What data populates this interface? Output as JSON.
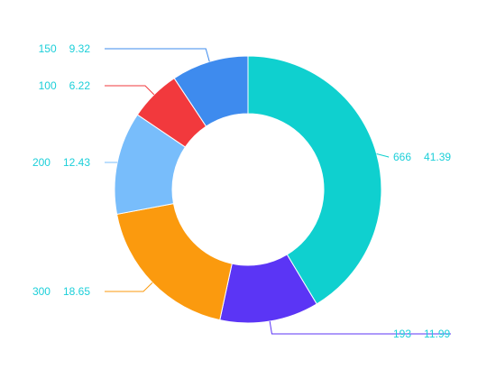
{
  "chart_data": {
    "type": "pie",
    "variant": "donut",
    "title": "",
    "slices": [
      {
        "value": 666,
        "percent": "41.39",
        "color": "#0fd0cf"
      },
      {
        "value": 193,
        "percent": "11.99",
        "color": "#5b35f5"
      },
      {
        "value": 300,
        "percent": "18.65",
        "color": "#fb9a0e"
      },
      {
        "value": 200,
        "percent": "12.43",
        "color": "#78bdfb"
      },
      {
        "value": 100,
        "percent": "6.22",
        "color": "#f2393d"
      },
      {
        "value": 150,
        "percent": "9.32",
        "color": "#3e8bee"
      }
    ],
    "label_color": "#1ccfd9",
    "start_angle": "top",
    "direction": "clockwise"
  }
}
